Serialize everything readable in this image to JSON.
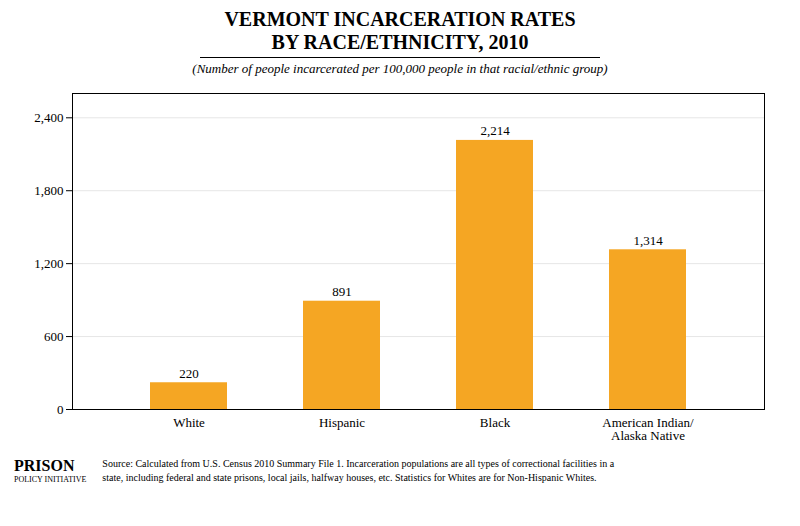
{
  "chart_data": {
    "type": "bar",
    "title": "VERMONT INCARCERATION RATES\nBY RACE/ETHNICITY, 2010",
    "subtitle": "(Number of people incarcerated per 100,000 people in that racial/ethnic group)",
    "categories": [
      "White",
      "Hispanic",
      "Black",
      "American Indian/\nAlaska Native"
    ],
    "values": [
      220,
      891,
      2214,
      1314
    ],
    "value_labels": [
      "220",
      "891",
      "2,214",
      "1,314"
    ],
    "color": "#F5A623",
    "ylim": [
      0,
      2600
    ],
    "yticks": [
      0,
      600,
      {
        "value": 1200,
        "label": "1,200"
      },
      {
        "value": 1800,
        "label": "1,800"
      },
      {
        "value": 2400,
        "label": "2,400"
      }
    ],
    "grid": true,
    "data_labels": true,
    "annotations": [
      "Source: Calculated from U.S. Census 2010 Summary File 1. Incarceration populations are all types of correctional facilities in a\nstate, including federal and state prisons, local jails, halfway houses, etc. Statistics for Whites are for Non-Hispanic Whites.",
      "PRISON",
      "POLICY INITIATIVE"
    ]
  }
}
